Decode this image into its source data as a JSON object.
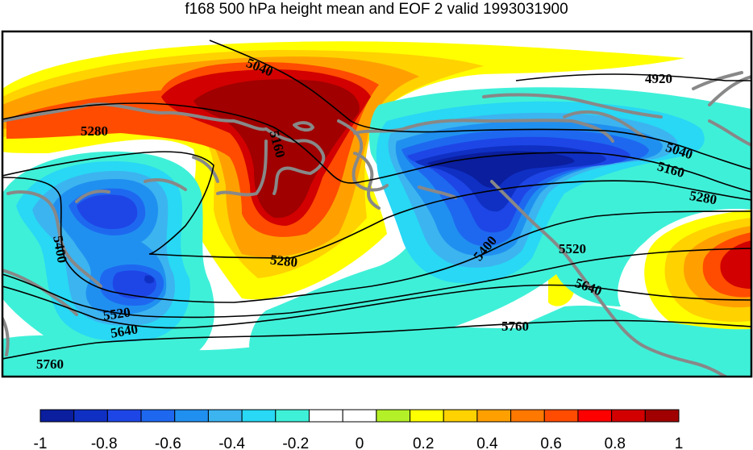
{
  "title": "f168 500 hPa height mean and EOF 2 valid 1993031900",
  "contour_labels": [
    "5040",
    "4920",
    "5280",
    "5160",
    "5040",
    "5160",
    "5280",
    "5400",
    "5400",
    "5520",
    "5280",
    "5640",
    "5520",
    "5640",
    "5760",
    "5760"
  ],
  "colorbar": {
    "tick_labels": [
      "-1",
      "-0.8",
      "-0.6",
      "-0.4",
      "-0.2",
      "0",
      "0.2",
      "0.4",
      "0.6",
      "0.8",
      "1"
    ],
    "colors": [
      "#0a1e9e",
      "#1030c4",
      "#1e46e6",
      "#1e68f0",
      "#2090f0",
      "#3cb4f0",
      "#28d8f4",
      "#3ff0d8",
      "#ffffff",
      "#ffffff",
      "#b4f028",
      "#ffff00",
      "#ffd200",
      "#ffa000",
      "#ff7800",
      "#ff4c00",
      "#ff0000",
      "#d20000",
      "#a00000"
    ]
  }
}
